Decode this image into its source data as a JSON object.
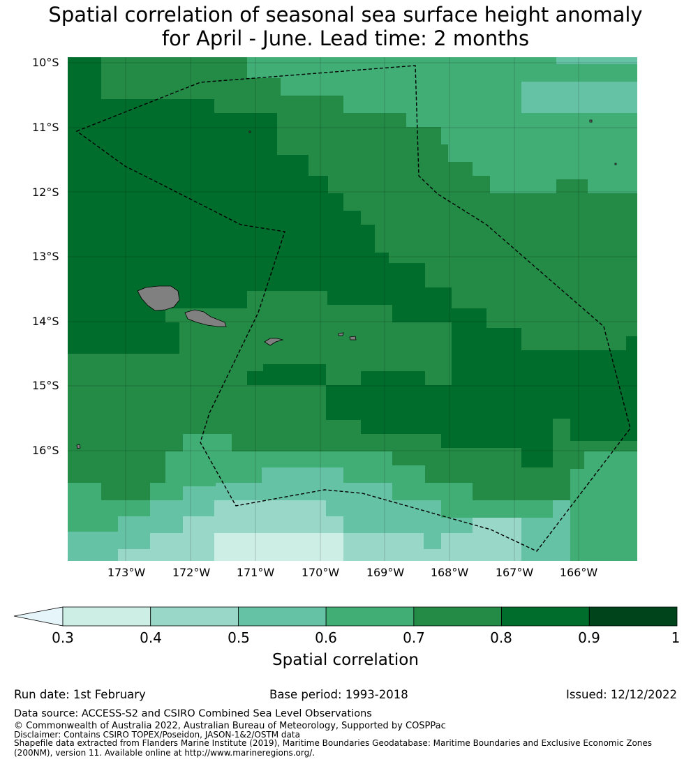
{
  "title": {
    "line1": "Spatial correlation of seasonal sea surface height anomaly",
    "line2": "for April - June. Lead time: 2 months"
  },
  "map": {
    "latitude_labels": [
      "10°S",
      "11°S",
      "12°S",
      "13°S",
      "14°S",
      "15°S",
      "16°S"
    ],
    "longitude_labels": [
      "173°W",
      "172°W",
      "171°W",
      "170°W",
      "169°W",
      "168°W",
      "167°W",
      "166°W"
    ],
    "land_color": "#808080",
    "boundary_style": "dashed black line"
  },
  "colorbar": {
    "ticks": [
      "0.3",
      "0.4",
      "0.5",
      "0.6",
      "0.7",
      "0.8",
      "0.9",
      "1"
    ],
    "colors": [
      "#cceee4",
      "#99d8c8",
      "#66c2a4",
      "#41ae76",
      "#238b45",
      "#006d2c",
      "#00441b"
    ],
    "extend_color": "#e5f5f9",
    "label": "Spatial correlation"
  },
  "footer": {
    "run_date": "Run date: 1st February",
    "base_period": "Base period: 1993-2018",
    "issued": "Issued: 12/12/2022",
    "data_source": "Data source: ACCESS-S2 and CSIRO Combined Sea Level Observations",
    "copyright": "© Commonwealth of Australia 2022, Australian Bureau of Meteorology, Supported by COSPPac",
    "disclaimer": "Disclaimer: Contains CSIRO TOPEX/Poseidon, JASON-1&2/OSTM data",
    "shapefile_line1": "Shapefile data extracted from Flanders Marine Institute (2019), Maritime Boundaries Geodatabase: Maritime Boundaries and Exclusive Economic Zones",
    "shapefile_line2": "(200NM), version 11. Available online at http://www.marineregions.org/."
  }
}
